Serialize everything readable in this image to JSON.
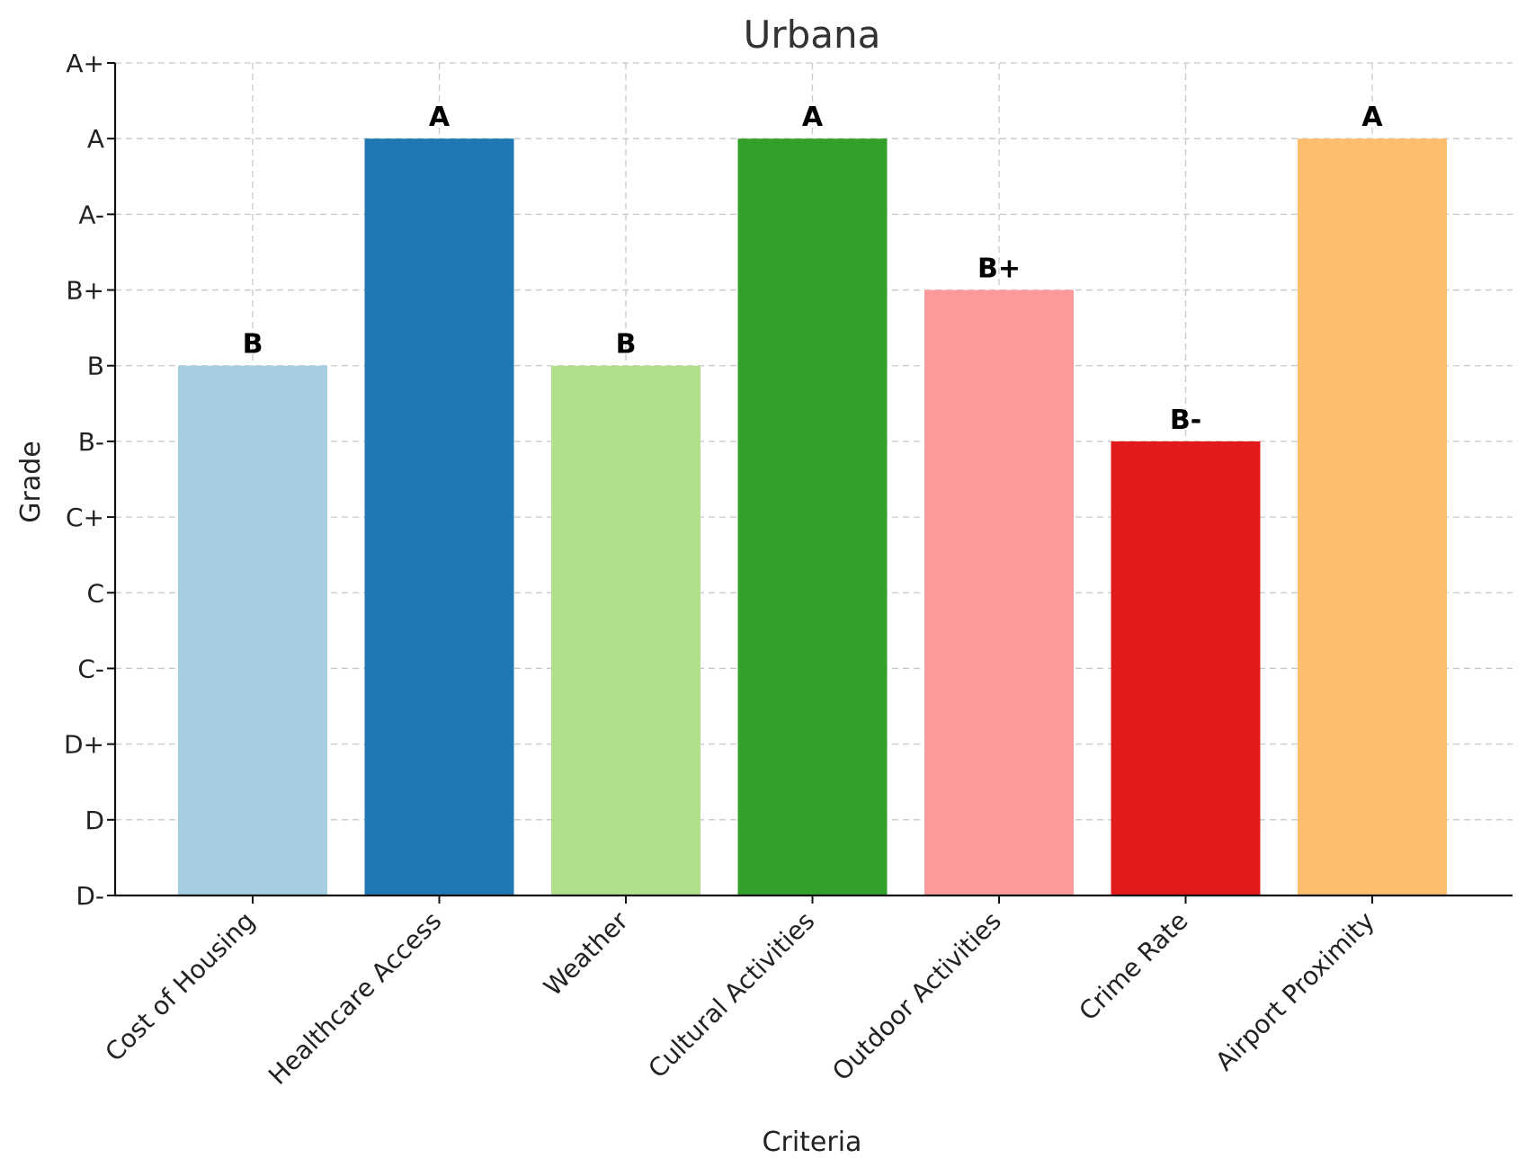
{
  "chart_data": {
    "type": "bar",
    "title": "Urbana",
    "xlabel": "Criteria",
    "ylabel": "Grade",
    "grade_scale": [
      "D-",
      "D",
      "D+",
      "C-",
      "C",
      "C+",
      "B-",
      "B",
      "B+",
      "A-",
      "A",
      "A+"
    ],
    "categories": [
      "Cost of Housing",
      "Healthcare Access",
      "Weather",
      "Cultural Activities",
      "Outdoor Activities",
      "Crime Rate",
      "Airport Proximity"
    ],
    "values": [
      7,
      10,
      7,
      10,
      8,
      6,
      10
    ],
    "value_labels": [
      "B",
      "A",
      "B",
      "A",
      "B+",
      "B-",
      "A"
    ],
    "colors": [
      "#a6cee3",
      "#1f78b4",
      "#b2df8a",
      "#33a02c",
      "#fb9a99",
      "#e31a1c",
      "#fdbf6f"
    ],
    "ylim": [
      0,
      11
    ],
    "grid": true,
    "legend": false
  }
}
